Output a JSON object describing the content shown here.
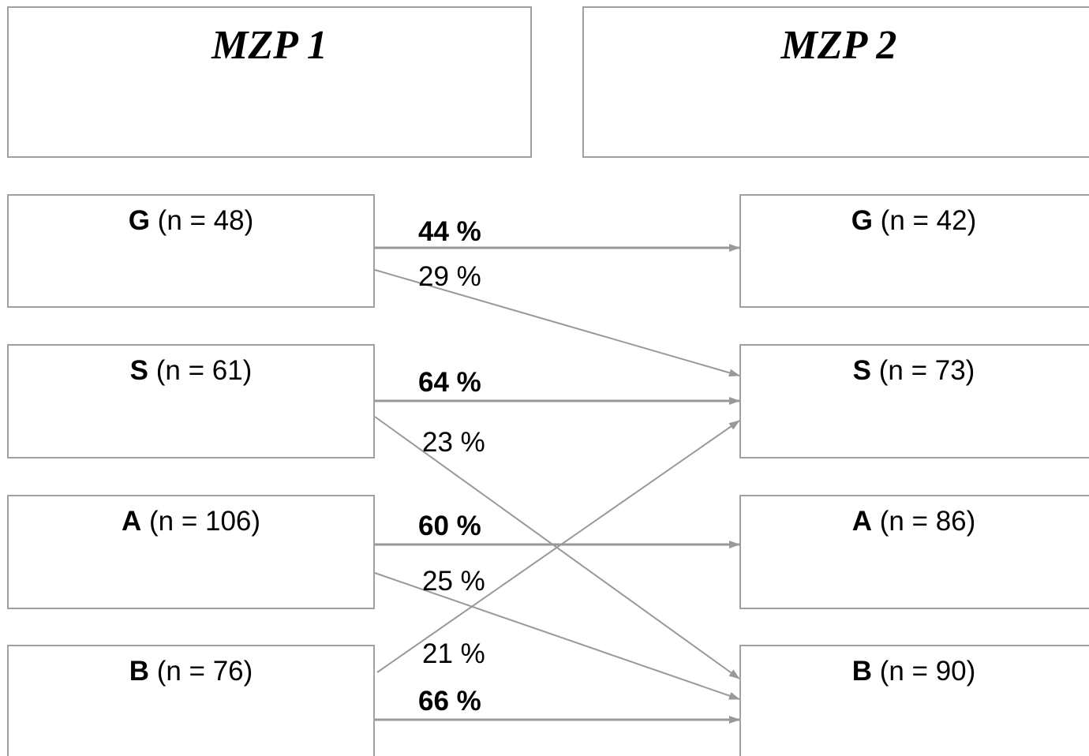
{
  "headers": {
    "left": "MZP 1",
    "right": "MZP 2"
  },
  "left_nodes": [
    {
      "code": "G",
      "n_text": "(n = 48)"
    },
    {
      "code": "S",
      "n_text": "(n = 61)"
    },
    {
      "code": "A",
      "n_text": "(n = 106)"
    },
    {
      "code": "B",
      "n_text": "(n = 76)"
    }
  ],
  "right_nodes": [
    {
      "code": "G",
      "n_text": "(n = 42)"
    },
    {
      "code": "S",
      "n_text": "(n = 73)"
    },
    {
      "code": "A",
      "n_text": "(n = 86)"
    },
    {
      "code": "B",
      "n_text": "(n = 90)"
    }
  ],
  "flows": [
    {
      "from": "G",
      "to": "G",
      "label": "44 %",
      "bold": true
    },
    {
      "from": "G",
      "to": "S",
      "label": "29 %",
      "bold": false
    },
    {
      "from": "S",
      "to": "S",
      "label": "64 %",
      "bold": true
    },
    {
      "from": "S",
      "to": "B",
      "label": "23 %",
      "bold": false
    },
    {
      "from": "A",
      "to": "A",
      "label": "60 %",
      "bold": true
    },
    {
      "from": "A",
      "to": "B",
      "label": "25 %",
      "bold": false
    },
    {
      "from": "B",
      "to": "S",
      "label": "21 %",
      "bold": false
    },
    {
      "from": "B",
      "to": "B",
      "label": "66 %",
      "bold": true
    }
  ],
  "colors": {
    "border": "#a0a0a0",
    "arrow": "#999999",
    "text": "#000000"
  }
}
